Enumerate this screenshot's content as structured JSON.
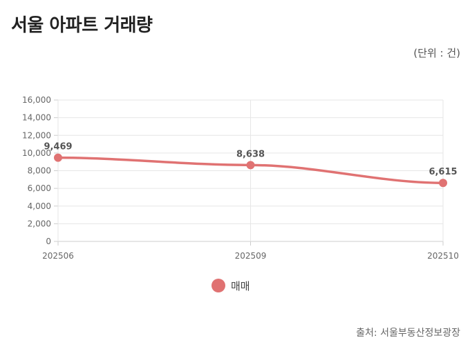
{
  "header": {
    "title": "서울 아파트 거래량",
    "unit": "(단위 : 건)"
  },
  "footer": {
    "source": "출처: 서울부동산정보광장"
  },
  "colors": {
    "series": "#e07272",
    "grid": "#e6e6e6",
    "axis": "#cccccc",
    "tick_text": "#666666",
    "label_text": "#555555"
  },
  "chart_data": {
    "type": "line",
    "categories": [
      "202506",
      "202509",
      "202510"
    ],
    "series": [
      {
        "name": "매매",
        "values": [
          9469,
          8638,
          6615
        ],
        "labels": [
          "9,469",
          "8,638",
          "6,615"
        ]
      }
    ],
    "ylim": [
      0,
      16000
    ],
    "yticks": [
      0,
      2000,
      4000,
      6000,
      8000,
      10000,
      12000,
      14000,
      16000
    ],
    "ytick_labels": [
      "0",
      "2,000",
      "4,000",
      "6,000",
      "8,000",
      "10,000",
      "12,000",
      "14,000",
      "16,000"
    ],
    "grid": true,
    "legend": "bottom-center",
    "xlabel": "",
    "ylabel": ""
  }
}
